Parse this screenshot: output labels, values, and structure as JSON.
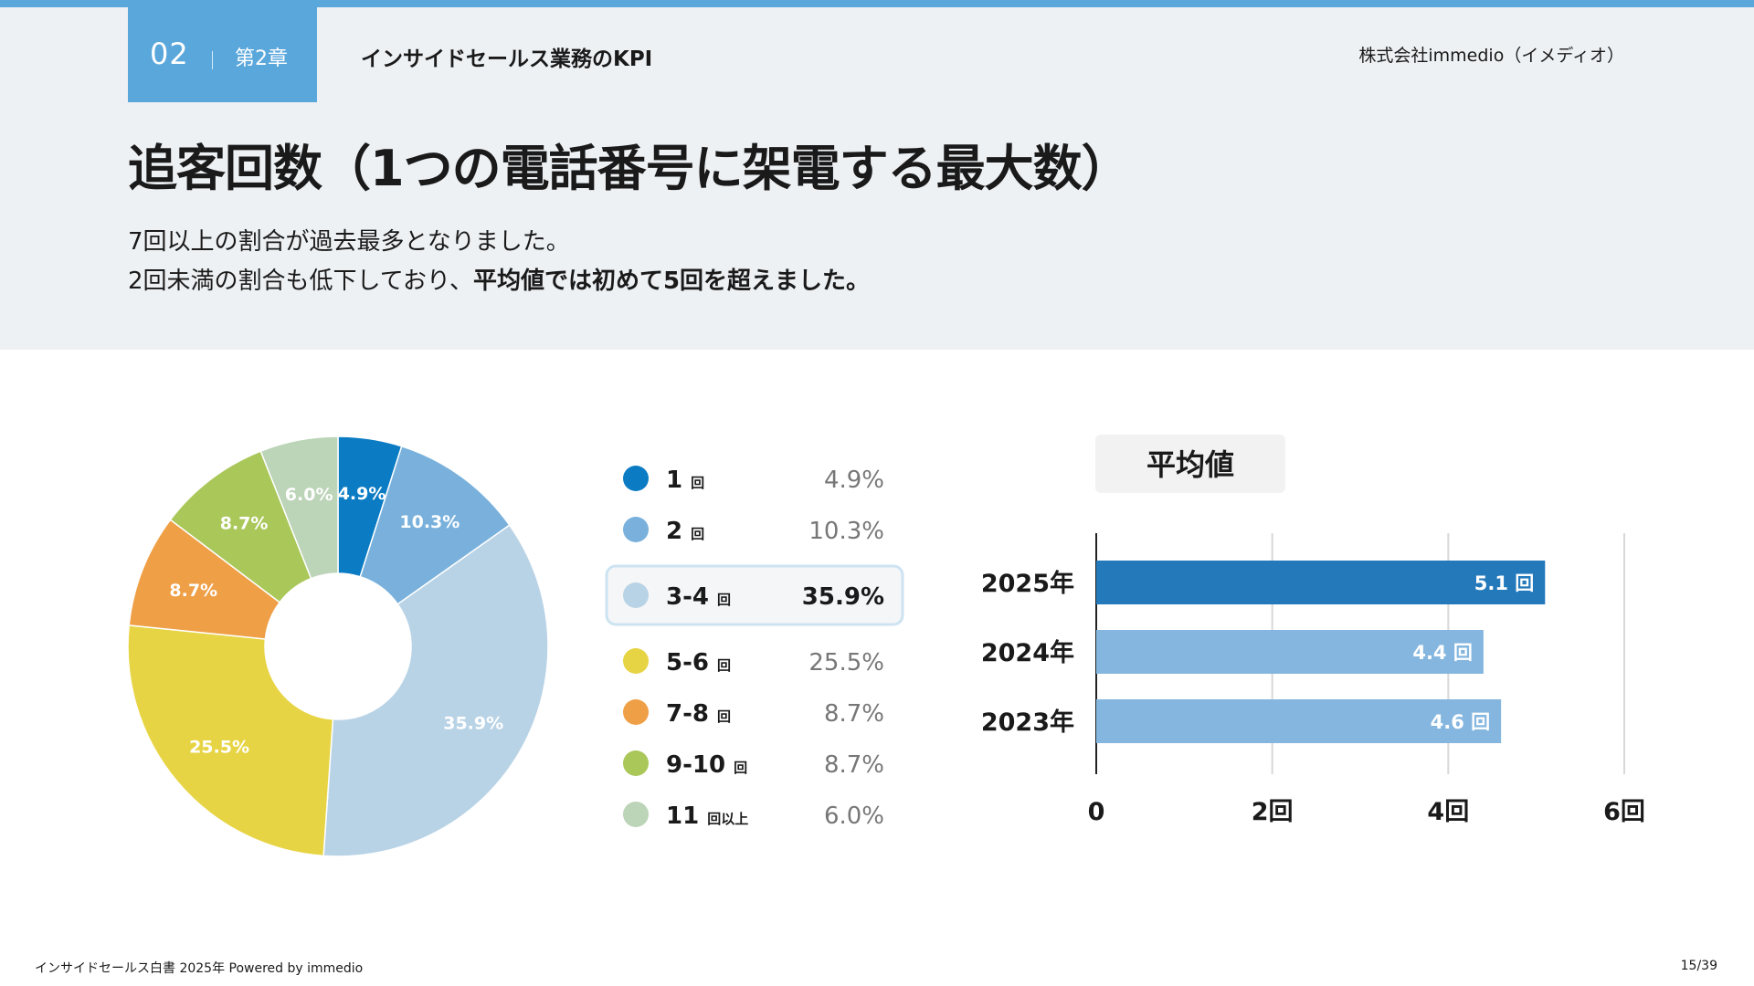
{
  "header": {
    "chapter_number": "02",
    "chapter_label": "第2章",
    "section_title": "インサイドセールス業務のKPI",
    "company": "株式会社immedio（イメディオ）"
  },
  "title": "追客回数（1つの電話番号に架電する最大数）",
  "lead": {
    "line1": "7回以上の割合が過去最多となりました。",
    "line2_plain": "2回未満の割合も低下しており、",
    "line2_bold": "平均値では初めて5回を超えました。"
  },
  "colors": {
    "accent": "#5aa7dc",
    "bar_current": "#2479bb",
    "bar_previous": "#85b6df",
    "highlight_bg": "#f5f6f8",
    "highlight_border": "#cde3f2"
  },
  "chart_data": [
    {
      "type": "pie",
      "subtype": "donut",
      "title": "",
      "slices": [
        {
          "main": "1",
          "unit": "回",
          "value": 4.9,
          "label": "4.9%",
          "color": "#0b7cc4"
        },
        {
          "main": "2",
          "unit": "回",
          "value": 10.3,
          "label": "10.3%",
          "color": "#79b1dc"
        },
        {
          "main": "3-4",
          "unit": "回",
          "value": 35.9,
          "label": "35.9%",
          "color": "#b9d3e6",
          "highlighted": true
        },
        {
          "main": "5-6",
          "unit": "回",
          "value": 25.5,
          "label": "25.5%",
          "color": "#e7d444"
        },
        {
          "main": "7-8",
          "unit": "回",
          "value": 8.7,
          "label": "8.7%",
          "color": "#ef9f46"
        },
        {
          "main": "9-10",
          "unit": "回",
          "value": 8.7,
          "label": "8.7%",
          "color": "#aac75a"
        },
        {
          "main": "11",
          "unit": "回以上",
          "value": 6.0,
          "label": "6.0%",
          "color": "#bcd4b8"
        }
      ],
      "legend_position": "right"
    },
    {
      "type": "bar",
      "orientation": "horizontal",
      "title": "平均値",
      "categories": [
        "2025年",
        "2024年",
        "2023年"
      ],
      "values": [
        5.1,
        4.4,
        4.6
      ],
      "value_labels": [
        "5.1 回",
        "4.4 回",
        "4.6 回"
      ],
      "xlim": [
        0,
        6
      ],
      "xticks": [
        0,
        2,
        4,
        6
      ],
      "xtick_labels": [
        "0",
        "2回",
        "4回",
        "6回"
      ],
      "grid": true
    }
  ],
  "footer": {
    "left": "インサイドセールス白書 2025年 Powered by immedio",
    "right": "15/39"
  }
}
